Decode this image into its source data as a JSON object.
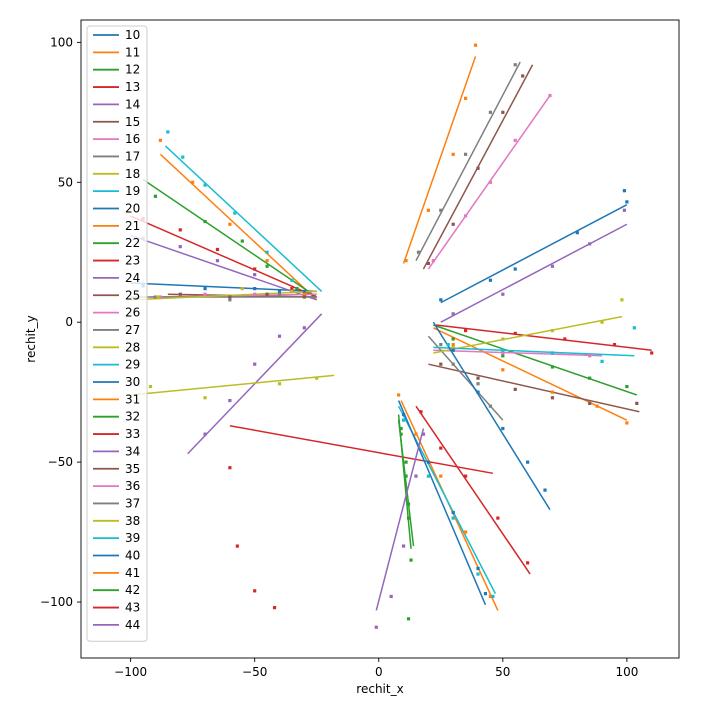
{
  "chart_data": {
    "type": "scatter",
    "xlabel": "rechit_x",
    "ylabel": "rechit_y",
    "xlim": [
      -120,
      121
    ],
    "ylim": [
      -120,
      108
    ],
    "xticks": [
      -100,
      -50,
      0,
      50,
      100
    ],
    "xtick_labels": [
      "−100",
      "−50",
      "0",
      "50",
      "100"
    ],
    "yticks": [
      100,
      50,
      0,
      -50,
      -100
    ],
    "ytick_labels": [
      "100",
      "50",
      "0",
      "−50",
      "−100"
    ],
    "legend_placement": "upper-left",
    "legend": [
      "10",
      "11",
      "12",
      "13",
      "14",
      "15",
      "16",
      "17",
      "18",
      "19",
      "20",
      "21",
      "22",
      "23",
      "24",
      "25",
      "26",
      "27",
      "28",
      "29",
      "30",
      "31",
      "32",
      "33",
      "34",
      "35",
      "36",
      "37",
      "38",
      "39",
      "40",
      "41",
      "42",
      "43",
      "44"
    ],
    "series": [
      {
        "name": "10",
        "line": [
          [
            -100,
            14
          ],
          [
            -25,
            11
          ]
        ],
        "points": [
          [
            -95,
            13
          ],
          [
            -70,
            12
          ],
          [
            -50,
            12
          ],
          [
            -40,
            11
          ],
          [
            -30,
            11
          ]
        ]
      },
      {
        "name": "11",
        "line": [
          [
            -88,
            60
          ],
          [
            -25,
            8
          ]
        ],
        "points": [
          [
            -88,
            65
          ],
          [
            -75,
            50
          ],
          [
            -60,
            35
          ],
          [
            -45,
            22
          ],
          [
            -30,
            10
          ]
        ]
      },
      {
        "name": "12",
        "line": [
          [
            -95,
            51
          ],
          [
            -25,
            9
          ]
        ],
        "points": [
          [
            -90,
            45
          ],
          [
            -70,
            36
          ],
          [
            -55,
            29
          ],
          [
            -45,
            20
          ],
          [
            -33,
            12
          ]
        ]
      },
      {
        "name": "13",
        "line": [
          [
            -100,
            38
          ],
          [
            -25,
            9
          ]
        ],
        "points": [
          [
            -95,
            37
          ],
          [
            -80,
            33
          ],
          [
            -65,
            26
          ],
          [
            -50,
            19
          ],
          [
            -35,
            12
          ]
        ]
      },
      {
        "name": "14",
        "line": [
          [
            -100,
            31
          ],
          [
            -25,
            8
          ]
        ],
        "points": [
          [
            -95,
            30
          ],
          [
            -80,
            27
          ],
          [
            -65,
            22
          ],
          [
            -50,
            17
          ],
          [
            -35,
            11
          ]
        ]
      },
      {
        "name": "15",
        "line": [
          [
            -85,
            10
          ],
          [
            -25,
            9
          ]
        ],
        "points": [
          [
            -80,
            10
          ],
          [
            -60,
            9
          ],
          [
            -45,
            10
          ],
          [
            -30,
            9
          ]
        ]
      },
      {
        "name": "16",
        "line": [
          [
            -92,
            9
          ],
          [
            -25,
            10
          ]
        ],
        "points": [
          [
            -88,
            9
          ],
          [
            -70,
            10
          ],
          [
            -50,
            10
          ]
        ]
      },
      {
        "name": "17",
        "line": [
          [
            -100,
            9
          ],
          [
            -25,
            9
          ]
        ],
        "points": [
          [
            -90,
            9
          ],
          [
            -60,
            8
          ],
          [
            -40,
            10
          ]
        ]
      },
      {
        "name": "18",
        "line": [
          [
            -100,
            8
          ],
          [
            -25,
            11
          ]
        ],
        "points": [
          [
            -89,
            9
          ],
          [
            -55,
            12
          ],
          [
            -35,
            11
          ]
        ]
      },
      {
        "name": "19",
        "line": [
          [
            -86,
            63
          ],
          [
            -23,
            11
          ]
        ],
        "points": [
          [
            -85,
            68
          ],
          [
            -79,
            59
          ],
          [
            -70,
            49
          ],
          [
            -58,
            39
          ],
          [
            -45,
            25
          ],
          [
            -35,
            15
          ]
        ]
      },
      {
        "name": "20",
        "line": [
          [
            25,
            7
          ],
          [
            100,
            42
          ]
        ],
        "points": [
          [
            25,
            8
          ],
          [
            45,
            15
          ],
          [
            55,
            19
          ],
          [
            80,
            32
          ],
          [
            99,
            47
          ],
          [
            100,
            43
          ]
        ]
      },
      {
        "name": "21",
        "line": [
          [
            22,
            -2
          ],
          [
            100,
            -35
          ]
        ],
        "points": [
          [
            30,
            -8
          ],
          [
            50,
            -17
          ],
          [
            70,
            -25
          ],
          [
            88,
            -30
          ],
          [
            100,
            -36
          ]
        ]
      },
      {
        "name": "22",
        "line": [
          [
            22,
            -1
          ],
          [
            104,
            -26
          ]
        ],
        "points": [
          [
            30,
            -6
          ],
          [
            50,
            -12
          ],
          [
            70,
            -16
          ],
          [
            85,
            -20
          ],
          [
            100,
            -23
          ]
        ]
      },
      {
        "name": "23",
        "line": [
          [
            23,
            -1
          ],
          [
            110,
            -10
          ]
        ],
        "points": [
          [
            35,
            -3
          ],
          [
            55,
            -4
          ],
          [
            75,
            -6
          ],
          [
            95,
            -8
          ],
          [
            110,
            -11
          ]
        ]
      },
      {
        "name": "24",
        "line": [
          [
            25,
            0
          ],
          [
            100,
            35
          ]
        ],
        "points": [
          [
            30,
            3
          ],
          [
            50,
            10
          ],
          [
            70,
            20
          ],
          [
            85,
            28
          ],
          [
            99,
            40
          ]
        ]
      },
      {
        "name": "25",
        "line": [
          [
            20,
            -15
          ],
          [
            105,
            -32
          ]
        ],
        "points": [
          [
            25,
            -15
          ],
          [
            40,
            -20
          ],
          [
            55,
            -24
          ],
          [
            70,
            -27
          ],
          [
            85,
            -29
          ],
          [
            104,
            -29
          ]
        ]
      },
      {
        "name": "26",
        "line": [
          [
            22,
            -10
          ],
          [
            90,
            -12
          ]
        ],
        "points": [
          [
            30,
            -10
          ],
          [
            50,
            -11
          ],
          [
            70,
            -11
          ],
          [
            85,
            -12
          ]
        ]
      },
      {
        "name": "27",
        "line": [
          [
            20,
            -5
          ],
          [
            50,
            -35
          ]
        ],
        "points": [
          [
            25,
            -8
          ],
          [
            30,
            -15
          ],
          [
            40,
            -22
          ],
          [
            45,
            -30
          ]
        ]
      },
      {
        "name": "28",
        "line": [
          [
            22,
            -11
          ],
          [
            98,
            2
          ]
        ],
        "points": [
          [
            30,
            -9
          ],
          [
            50,
            -6
          ],
          [
            70,
            -3
          ],
          [
            90,
            0
          ],
          [
            98,
            8
          ]
        ]
      },
      {
        "name": "29",
        "line": [
          [
            22,
            -9
          ],
          [
            103,
            -12
          ]
        ],
        "points": [
          [
            28,
            -8
          ],
          [
            50,
            -10
          ],
          [
            70,
            -11
          ],
          [
            90,
            -14
          ],
          [
            103,
            -2
          ]
        ]
      },
      {
        "name": "30",
        "line": [
          [
            22,
            0
          ],
          [
            69,
            -67
          ]
        ],
        "points": [
          [
            30,
            -10
          ],
          [
            40,
            -25
          ],
          [
            50,
            -38
          ],
          [
            60,
            -50
          ],
          [
            67,
            -60
          ]
        ]
      },
      {
        "name": "31",
        "line": [
          [
            9,
            -28
          ],
          [
            48,
            -103
          ]
        ],
        "points": [
          [
            8,
            -26
          ],
          [
            15,
            -40
          ],
          [
            25,
            -55
          ],
          [
            35,
            -75
          ],
          [
            45,
            -98
          ]
        ]
      },
      {
        "name": "32",
        "line": [
          [
            8,
            -35
          ],
          [
            14,
            -80
          ]
        ],
        "points": [
          [
            9,
            -40
          ],
          [
            11,
            -55
          ],
          [
            12,
            -70
          ],
          [
            13,
            -85
          ]
        ]
      },
      {
        "name": "33",
        "line": [
          [
            -60,
            -37
          ],
          [
            46,
            -54
          ]
        ],
        "points": [
          [
            -60,
            -52
          ],
          [
            -57,
            -80
          ],
          [
            -50,
            -96
          ],
          [
            -42,
            -102
          ]
        ]
      },
      {
        "name": "34",
        "line": [
          [
            -77,
            -47
          ],
          [
            -23,
            3
          ]
        ],
        "points": [
          [
            -70,
            -40
          ],
          [
            -60,
            -28
          ],
          [
            -50,
            -15
          ],
          [
            -40,
            -5
          ],
          [
            -30,
            -2
          ]
        ]
      },
      {
        "name": "35",
        "line": [
          [
            18,
            19
          ],
          [
            62,
            92
          ]
        ],
        "points": [
          [
            20,
            21
          ],
          [
            30,
            35
          ],
          [
            40,
            55
          ],
          [
            50,
            75
          ],
          [
            58,
            88
          ]
        ]
      },
      {
        "name": "36",
        "line": [
          [
            20,
            19
          ],
          [
            69,
            81
          ]
        ],
        "points": [
          [
            22,
            22
          ],
          [
            35,
            38
          ],
          [
            45,
            50
          ],
          [
            55,
            65
          ],
          [
            69,
            81
          ]
        ]
      },
      {
        "name": "37",
        "line": [
          [
            15,
            22
          ],
          [
            57,
            93
          ]
        ],
        "points": [
          [
            16,
            25
          ],
          [
            25,
            40
          ],
          [
            35,
            60
          ],
          [
            45,
            75
          ],
          [
            55,
            92
          ]
        ]
      },
      {
        "name": "38",
        "line": [
          [
            -100,
            -26
          ],
          [
            -18,
            -19
          ]
        ],
        "points": [
          [
            -92,
            -23
          ],
          [
            -70,
            -27
          ],
          [
            -40,
            -22
          ],
          [
            -25,
            -20
          ]
        ]
      },
      {
        "name": "39",
        "line": [
          [
            8,
            -30
          ],
          [
            47,
            -97
          ]
        ],
        "points": [
          [
            10,
            -35
          ],
          [
            20,
            -55
          ],
          [
            30,
            -70
          ],
          [
            40,
            -90
          ],
          [
            46,
            -98
          ]
        ]
      },
      {
        "name": "40",
        "line": [
          [
            8,
            -28
          ],
          [
            43,
            -101
          ]
        ],
        "points": [
          [
            10,
            -33
          ],
          [
            20,
            -50
          ],
          [
            30,
            -68
          ],
          [
            40,
            -88
          ],
          [
            43,
            -97
          ]
        ]
      },
      {
        "name": "41",
        "line": [
          [
            10,
            21
          ],
          [
            39,
            95
          ]
        ],
        "points": [
          [
            11,
            22
          ],
          [
            20,
            40
          ],
          [
            30,
            60
          ],
          [
            35,
            80
          ],
          [
            39,
            99
          ]
        ]
      },
      {
        "name": "42",
        "line": [
          [
            8,
            -33
          ],
          [
            13,
            -81
          ]
        ],
        "points": [
          [
            9,
            -38
          ],
          [
            11,
            -50
          ],
          [
            12,
            -65
          ],
          [
            12,
            -106
          ]
        ]
      },
      {
        "name": "43",
        "line": [
          [
            15,
            -30
          ],
          [
            61,
            -90
          ]
        ],
        "points": [
          [
            17,
            -32
          ],
          [
            25,
            -45
          ],
          [
            35,
            -55
          ],
          [
            48,
            -70
          ],
          [
            60,
            -86
          ]
        ]
      },
      {
        "name": "44",
        "line": [
          [
            -1,
            -103
          ],
          [
            18,
            -38
          ]
        ],
        "points": [
          [
            -1,
            -109
          ],
          [
            5,
            -98
          ],
          [
            10,
            -80
          ],
          [
            15,
            -55
          ],
          [
            18,
            -40
          ]
        ]
      }
    ]
  }
}
